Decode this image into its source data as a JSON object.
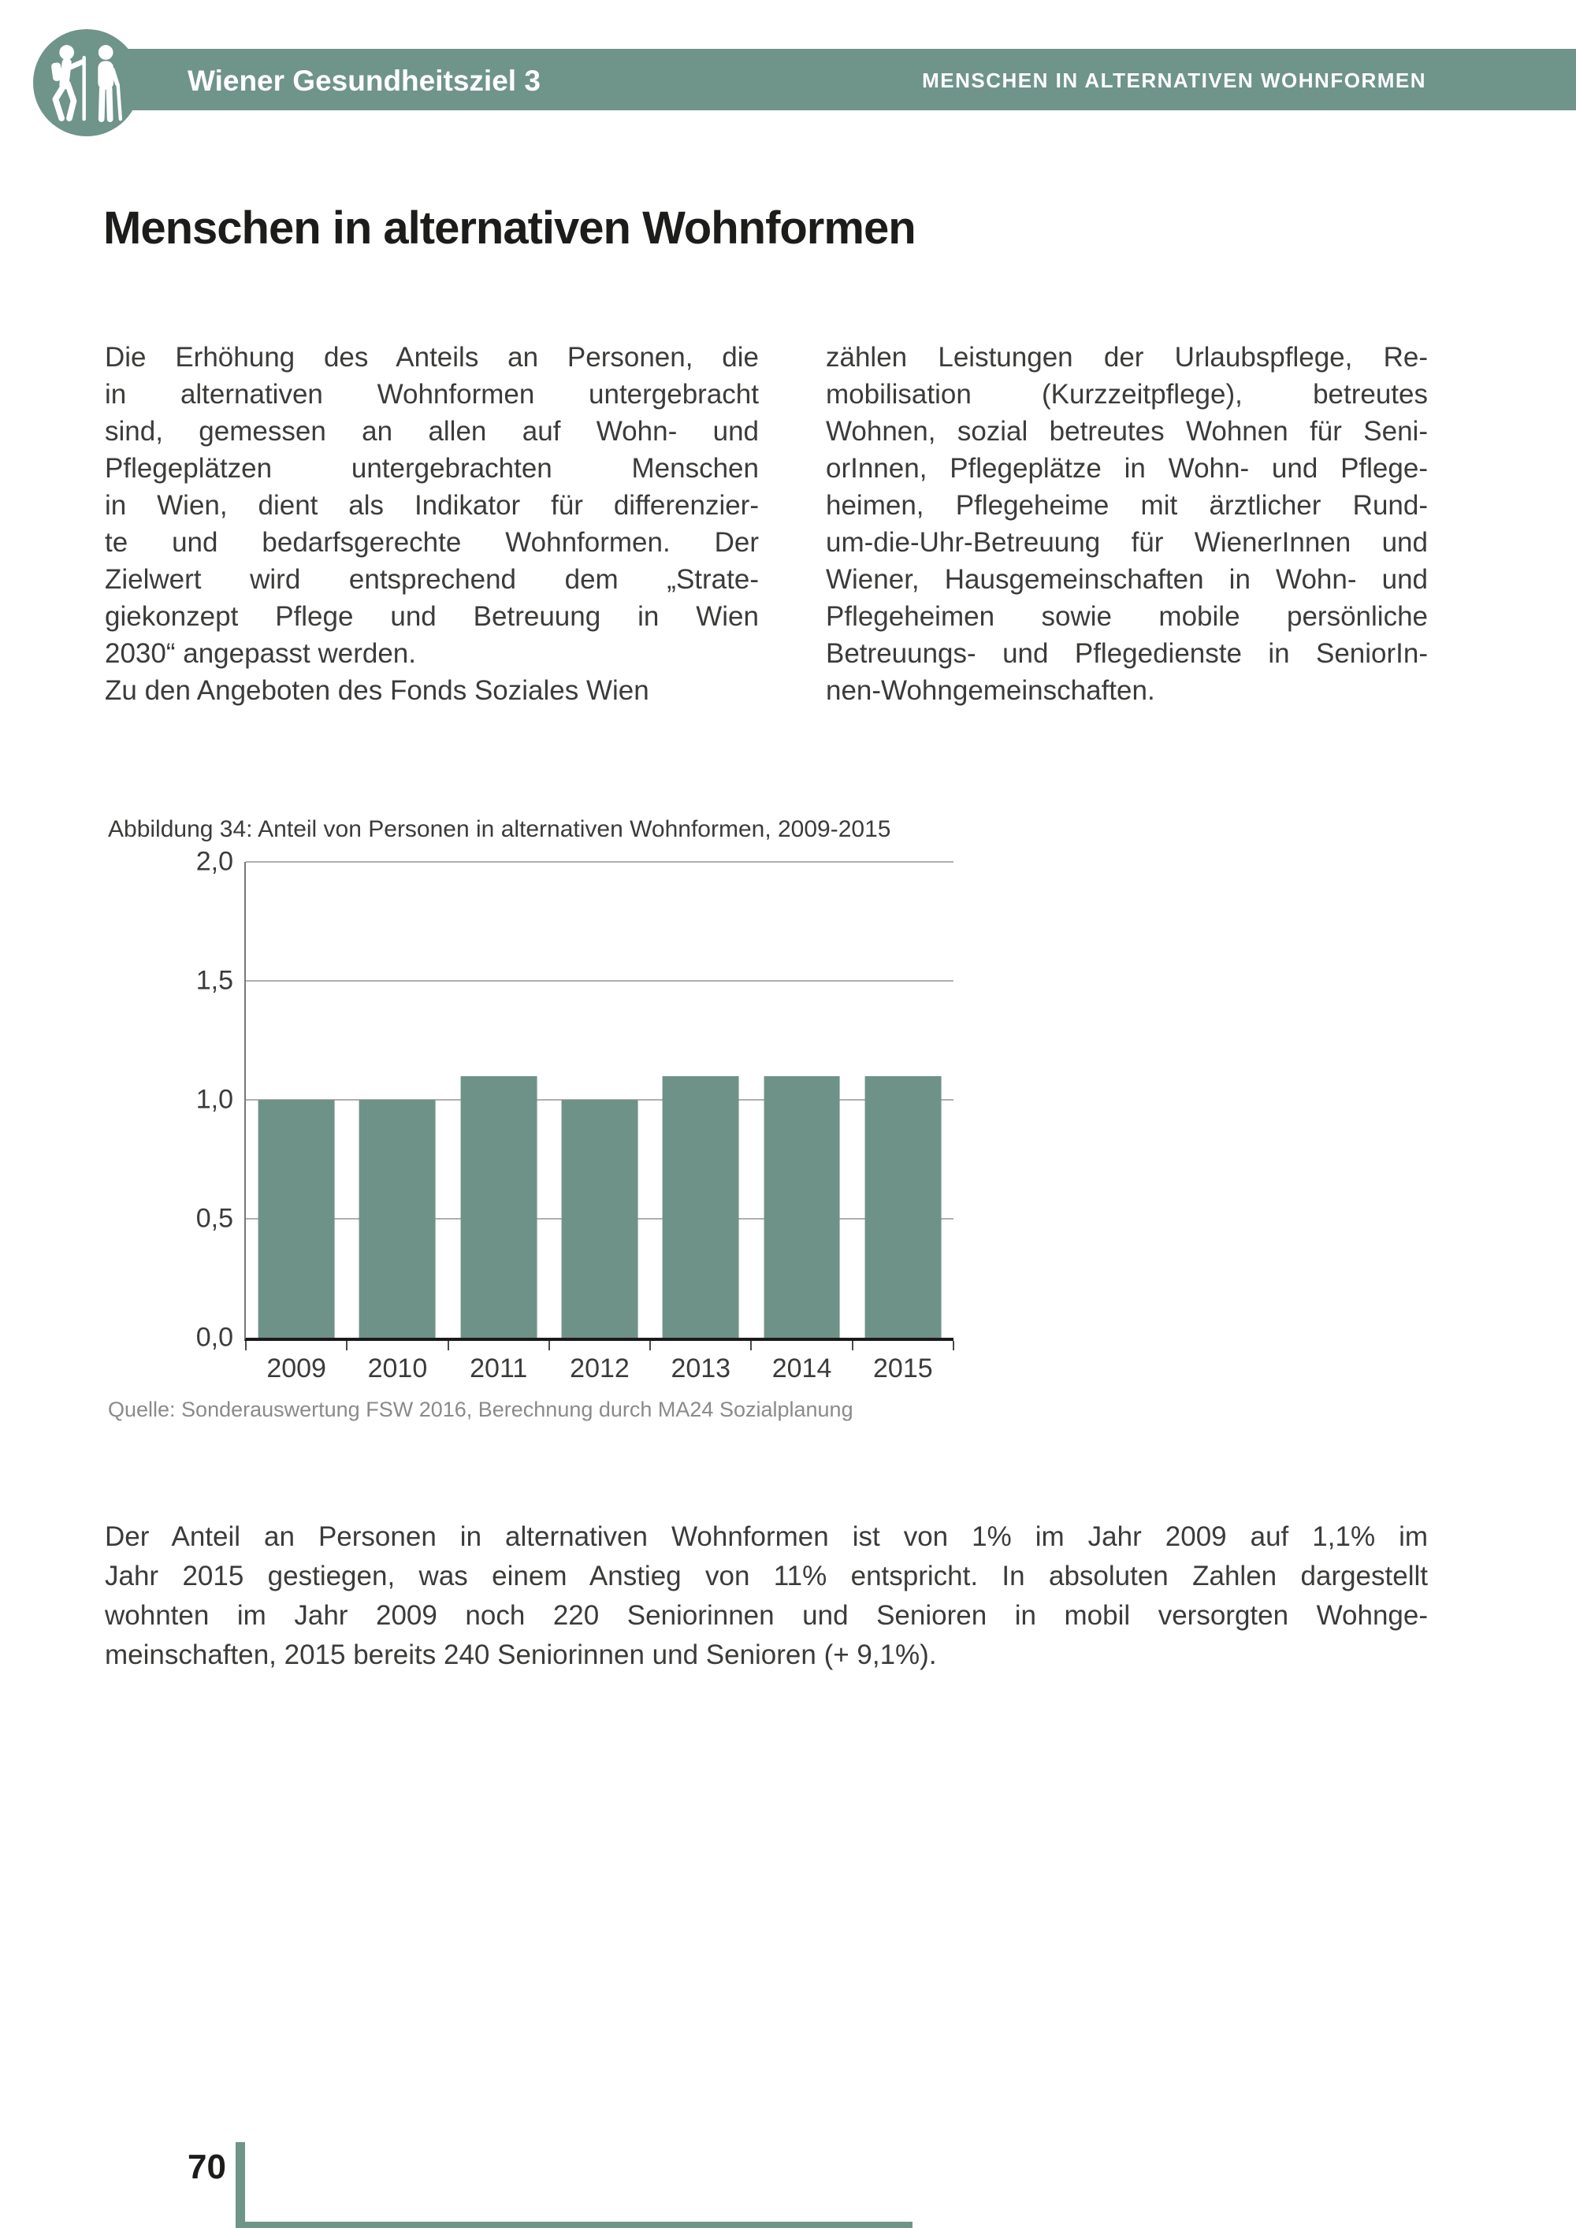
{
  "header": {
    "title": "Wiener Gesundheitsziel 3",
    "section_label": "MENSCHEN IN ALTERNATIVEN WOHNFORMEN",
    "icon": "seniors-walking-icon",
    "bar_color": "#6F948A"
  },
  "page": {
    "heading": "Menschen in alternativen Wohnformen",
    "page_number": "70"
  },
  "intro": {
    "left_column": {
      "paragraph1_lines": [
        "Die Erhöhung des Anteils an Personen, die",
        "in alternativen Wohnformen untergebracht",
        "sind, gemessen an allen auf Wohn- und",
        "Pflegeplätzen untergebrachten Menschen",
        "in Wien, dient als Indikator für differenzier-",
        "te und bedarfsgerechte Wohnformen. Der",
        "Zielwert wird entsprechend dem „Strate-",
        "giekonzept Pflege und Betreuung in Wien",
        "2030“ angepasst werden."
      ],
      "paragraph2_lines": [
        "Zu den Angeboten des Fonds Soziales Wien"
      ]
    },
    "right_column": {
      "paragraph_lines": [
        "zählen Leistungen der Urlaubspflege, Re-",
        "mobilisation (Kurzzeitpflege), betreutes",
        "Wohnen, sozial betreutes Wohnen für Seni-",
        "orInnen, Pflegeplätze in Wohn- und Pflege-",
        "heimen, Pflegeheime mit ärztlicher Rund-",
        "um-die-Uhr-Betreuung für WienerInnen und",
        "Wiener, Hausgemeinschaften in Wohn- und",
        "Pflegeheimen sowie mobile persönliche",
        "Betreuungs- und Pflegedienste in SeniorIn-",
        "nen-Wohngemeinschaften."
      ]
    }
  },
  "chart": {
    "caption": "Abbildung 34: Anteil von Personen in alternativen Wohnformen, 2009-2015",
    "source": "Quelle: Sonderauswertung FSW 2016, Berechnung durch MA24 Sozialplanung"
  },
  "chart_data": {
    "type": "bar",
    "title": "Abbildung 34: Anteil von Personen in alternativen Wohnformen, 2009-2015",
    "categories": [
      "2009",
      "2010",
      "2011",
      "2012",
      "2013",
      "2014",
      "2015"
    ],
    "values": [
      1.0,
      1.0,
      1.1,
      1.0,
      1.1,
      1.1,
      1.1
    ],
    "unit": "%",
    "ylim": [
      0.0,
      2.0
    ],
    "yticks": [
      2.0,
      1.5,
      1.0,
      0.5,
      0.0
    ],
    "ytick_labels": [
      "2,0",
      "1,5",
      "1,0",
      "0,5",
      "0,0"
    ],
    "xlabel": "",
    "ylabel": "",
    "grid": true,
    "legend": false,
    "bar_color": "#6F9288",
    "source": "Quelle: Sonderauswertung FSW 2016, Berechnung durch MA24 Sozialplanung"
  },
  "closing": {
    "lines": [
      "Der Anteil an Personen in alternativen Wohnformen ist von 1% im Jahr 2009 auf 1,1% im",
      "Jahr 2015 gestiegen, was einem Anstieg von 11% entspricht. In absoluten Zahlen dargestellt",
      "wohnten im Jahr 2009 noch 220 Seniorinnen und Senioren in mobil versorgten Wohnge-",
      "meinschaften, 2015 bereits 240 Seniorinnen und Senioren (+ 9,1%)."
    ]
  },
  "colors": {
    "accent": "#6F948A",
    "bar": "#6F9288",
    "body_text": "#3B3B3A",
    "heading_text": "#1C1C1B",
    "muted_text": "#8A8A8A"
  }
}
